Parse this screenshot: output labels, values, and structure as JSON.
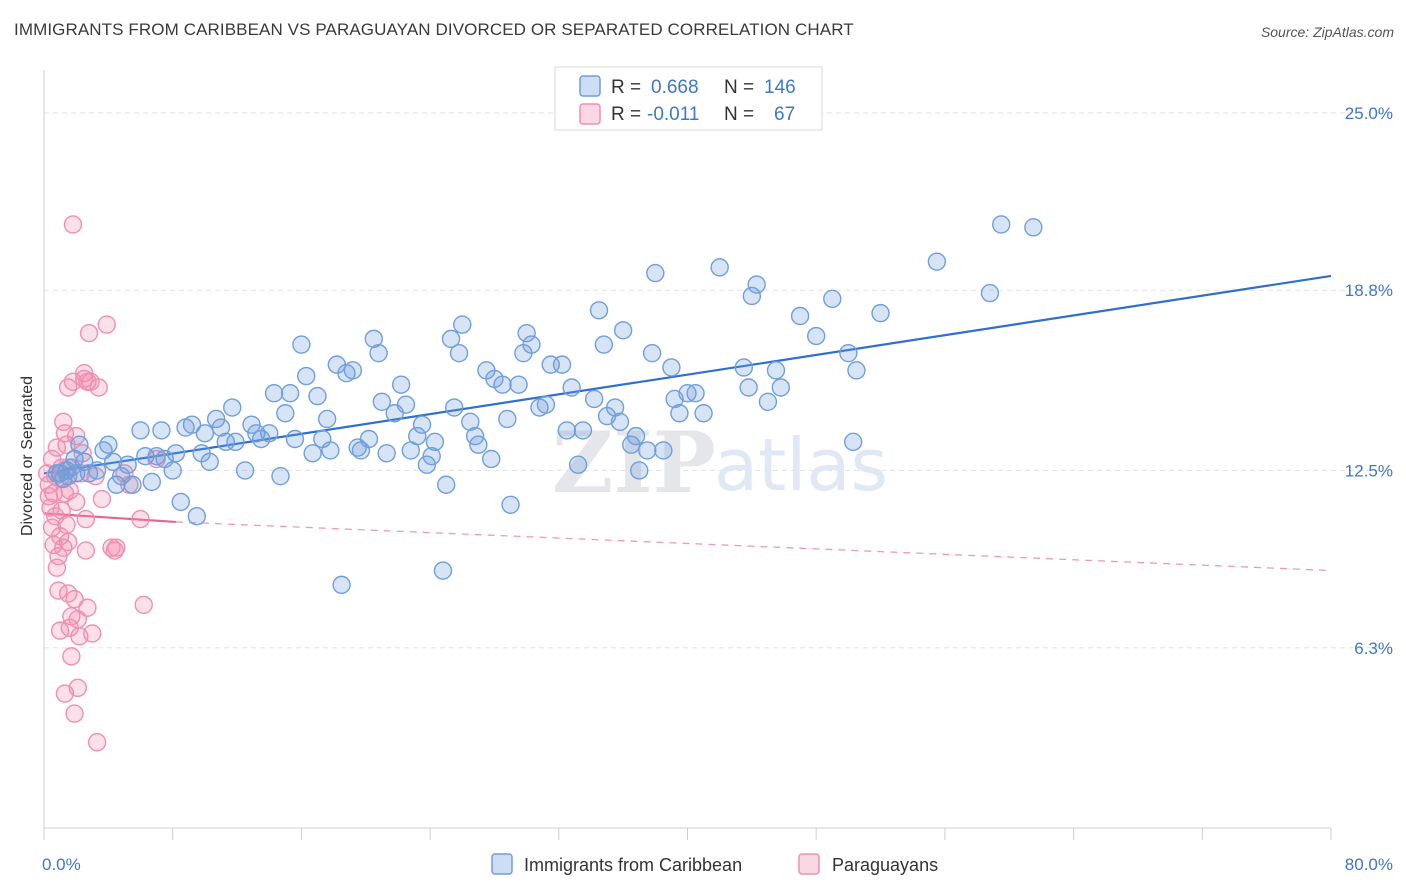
{
  "title": "IMMIGRANTS FROM CARIBBEAN VS PARAGUAYAN DIVORCED OR SEPARATED CORRELATION CHART",
  "source": "Source: ZipAtlas.com",
  "watermark": {
    "zip": "ZIP",
    "atlas": "atlas"
  },
  "legend": {
    "r_label": "R =",
    "n_label": "N =",
    "rows": [
      {
        "r": "0.668",
        "n": "146",
        "color": "#6f9fdc"
      },
      {
        "r": "-0.011",
        "n": "67",
        "color": "#f08fb0"
      }
    ]
  },
  "chart_data": {
    "type": "scatter",
    "title": "IMMIGRANTS FROM CARIBBEAN VS PARAGUAYAN DIVORCED OR SEPARATED CORRELATION CHART",
    "xlabel": "",
    "ylabel": "Divorced or Separated",
    "xlim": [
      0,
      80
    ],
    "ylim": [
      0,
      26.5
    ],
    "x_tick_labels": [
      "0.0%",
      "80.0%"
    ],
    "y_ticks": [
      6.3,
      12.5,
      18.8,
      25.0
    ],
    "y_tick_labels": [
      "6.3%",
      "12.5%",
      "18.8%",
      "25.0%"
    ],
    "grid": "horizontal dashed",
    "legend_position": "bottom",
    "series": [
      {
        "name": "Immigrants from Caribbean",
        "color": "#6f9fdc",
        "trend": {
          "x": [
            0,
            80
          ],
          "y": [
            12.4,
            19.3
          ],
          "style": "solid"
        },
        "points": [
          [
            0.8,
            12.4
          ],
          [
            1.0,
            12.4
          ],
          [
            1.2,
            12.2
          ],
          [
            1.4,
            12.5
          ],
          [
            1.5,
            12.3
          ],
          [
            1.7,
            12.6
          ],
          [
            1.9,
            12.9
          ],
          [
            2.0,
            12.4
          ],
          [
            2.2,
            13.4
          ],
          [
            2.5,
            12.8
          ],
          [
            2.8,
            12.4
          ],
          [
            3.3,
            12.5
          ],
          [
            3.7,
            13.2
          ],
          [
            4.0,
            13.4
          ],
          [
            4.3,
            12.8
          ],
          [
            4.5,
            12.0
          ],
          [
            4.8,
            12.3
          ],
          [
            5.2,
            12.7
          ],
          [
            5.5,
            12.0
          ],
          [
            6.0,
            13.9
          ],
          [
            6.3,
            13.0
          ],
          [
            6.7,
            12.1
          ],
          [
            7.0,
            13.0
          ],
          [
            7.3,
            13.9
          ],
          [
            7.5,
            12.9
          ],
          [
            8.0,
            12.5
          ],
          [
            8.2,
            13.1
          ],
          [
            8.5,
            11.4
          ],
          [
            8.8,
            14.0
          ],
          [
            9.2,
            14.1
          ],
          [
            9.5,
            10.9
          ],
          [
            9.8,
            13.1
          ],
          [
            10.0,
            13.8
          ],
          [
            10.3,
            12.8
          ],
          [
            10.7,
            14.3
          ],
          [
            11.0,
            14.0
          ],
          [
            11.3,
            13.5
          ],
          [
            11.7,
            14.7
          ],
          [
            11.9,
            13.5
          ],
          [
            12.5,
            12.5
          ],
          [
            12.9,
            14.1
          ],
          [
            13.2,
            13.8
          ],
          [
            13.5,
            13.6
          ],
          [
            14.0,
            13.8
          ],
          [
            14.3,
            15.2
          ],
          [
            14.7,
            12.3
          ],
          [
            15.0,
            14.5
          ],
          [
            15.3,
            15.2
          ],
          [
            15.6,
            13.6
          ],
          [
            16.0,
            16.9
          ],
          [
            16.3,
            15.8
          ],
          [
            16.7,
            13.1
          ],
          [
            17.0,
            15.1
          ],
          [
            17.3,
            13.6
          ],
          [
            17.6,
            14.3
          ],
          [
            17.8,
            13.2
          ],
          [
            18.2,
            16.2
          ],
          [
            18.5,
            8.5
          ],
          [
            18.8,
            15.9
          ],
          [
            19.2,
            16.0
          ],
          [
            19.5,
            13.3
          ],
          [
            19.7,
            13.2
          ],
          [
            20.2,
            13.6
          ],
          [
            20.5,
            17.1
          ],
          [
            20.8,
            16.6
          ],
          [
            21.0,
            14.9
          ],
          [
            21.3,
            13.1
          ],
          [
            21.8,
            14.5
          ],
          [
            22.2,
            15.5
          ],
          [
            22.5,
            14.8
          ],
          [
            22.8,
            13.2
          ],
          [
            23.2,
            13.7
          ],
          [
            23.5,
            14.1
          ],
          [
            23.8,
            12.7
          ],
          [
            24.1,
            13.0
          ],
          [
            24.3,
            13.5
          ],
          [
            24.8,
            9.0
          ],
          [
            25.0,
            12.0
          ],
          [
            25.3,
            17.1
          ],
          [
            25.5,
            14.7
          ],
          [
            25.8,
            16.6
          ],
          [
            26.0,
            17.6
          ],
          [
            26.5,
            14.2
          ],
          [
            26.8,
            13.7
          ],
          [
            27.0,
            13.4
          ],
          [
            27.5,
            16.0
          ],
          [
            27.8,
            12.9
          ],
          [
            28.0,
            15.7
          ],
          [
            28.5,
            15.5
          ],
          [
            28.8,
            14.3
          ],
          [
            29.0,
            11.3
          ],
          [
            29.5,
            15.5
          ],
          [
            29.8,
            16.6
          ],
          [
            30.0,
            17.3
          ],
          [
            30.3,
            16.9
          ],
          [
            30.8,
            14.7
          ],
          [
            31.2,
            14.8
          ],
          [
            31.5,
            16.2
          ],
          [
            32.2,
            16.2
          ],
          [
            32.5,
            13.9
          ],
          [
            32.8,
            15.4
          ],
          [
            33.2,
            12.7
          ],
          [
            33.5,
            13.9
          ],
          [
            34.2,
            15.0
          ],
          [
            34.5,
            18.1
          ],
          [
            34.8,
            16.9
          ],
          [
            35.0,
            14.4
          ],
          [
            35.5,
            14.7
          ],
          [
            35.8,
            14.2
          ],
          [
            36.0,
            17.4
          ],
          [
            36.5,
            13.4
          ],
          [
            36.8,
            13.7
          ],
          [
            37.0,
            12.5
          ],
          [
            37.5,
            13.2
          ],
          [
            37.8,
            16.6
          ],
          [
            38.0,
            19.4
          ],
          [
            38.5,
            13.2
          ],
          [
            39.0,
            16.1
          ],
          [
            39.2,
            15.0
          ],
          [
            39.5,
            14.5
          ],
          [
            40.0,
            15.2
          ],
          [
            40.5,
            15.2
          ],
          [
            41.0,
            14.5
          ],
          [
            42.0,
            19.6
          ],
          [
            43.5,
            16.1
          ],
          [
            43.8,
            15.4
          ],
          [
            44.0,
            18.6
          ],
          [
            44.3,
            19.0
          ],
          [
            45.0,
            14.9
          ],
          [
            45.5,
            16.0
          ],
          [
            45.8,
            15.4
          ],
          [
            47.0,
            17.9
          ],
          [
            48.0,
            17.2
          ],
          [
            49.0,
            18.5
          ],
          [
            50.0,
            16.6
          ],
          [
            50.3,
            13.5
          ],
          [
            50.5,
            16.0
          ],
          [
            52.0,
            18.0
          ],
          [
            55.5,
            19.8
          ],
          [
            58.8,
            18.7
          ],
          [
            59.5,
            21.1
          ],
          [
            61.5,
            21.0
          ]
        ]
      },
      {
        "name": "Paraguayans",
        "color": "#f08fb0",
        "trend": {
          "x": [
            0,
            8.2
          ],
          "y": [
            11.0,
            10.7
          ],
          "style": "solid",
          "extension": {
            "x": [
              8.2,
              80
            ],
            "y": [
              10.7,
              9.0
            ],
            "style": "dashed"
          }
        },
        "points": [
          [
            0.2,
            12.4
          ],
          [
            0.3,
            12.0
          ],
          [
            0.3,
            11.6
          ],
          [
            0.4,
            11.2
          ],
          [
            0.5,
            10.5
          ],
          [
            0.5,
            12.9
          ],
          [
            0.6,
            9.9
          ],
          [
            0.6,
            11.7
          ],
          [
            0.7,
            12.3
          ],
          [
            0.7,
            10.9
          ],
          [
            0.8,
            13.3
          ],
          [
            0.8,
            9.1
          ],
          [
            0.9,
            8.3
          ],
          [
            0.9,
            9.5
          ],
          [
            1.0,
            12.2
          ],
          [
            1.0,
            10.2
          ],
          [
            1.0,
            6.9
          ],
          [
            1.1,
            11.1
          ],
          [
            1.1,
            12.6
          ],
          [
            1.2,
            14.2
          ],
          [
            1.2,
            9.8
          ],
          [
            1.3,
            13.8
          ],
          [
            1.3,
            11.7
          ],
          [
            1.3,
            4.7
          ],
          [
            1.4,
            10.6
          ],
          [
            1.4,
            13.4
          ],
          [
            1.5,
            12.6
          ],
          [
            1.5,
            15.4
          ],
          [
            1.5,
            10.0
          ],
          [
            1.6,
            7.0
          ],
          [
            1.6,
            11.8
          ],
          [
            1.7,
            7.4
          ],
          [
            1.7,
            6.0
          ],
          [
            1.8,
            15.6
          ],
          [
            1.8,
            21.1
          ],
          [
            1.9,
            4.0
          ],
          [
            1.9,
            8.0
          ],
          [
            2.0,
            11.4
          ],
          [
            2.0,
            13.7
          ],
          [
            2.1,
            4.9
          ],
          [
            2.1,
            7.3
          ],
          [
            2.2,
            6.7
          ],
          [
            2.3,
            12.4
          ],
          [
            2.4,
            13.1
          ],
          [
            2.5,
            15.7
          ],
          [
            2.5,
            15.9
          ],
          [
            2.6,
            10.8
          ],
          [
            2.6,
            9.7
          ],
          [
            2.7,
            15.6
          ],
          [
            2.8,
            17.3
          ],
          [
            2.9,
            15.6
          ],
          [
            3.0,
            6.8
          ],
          [
            3.2,
            12.3
          ],
          [
            3.3,
            3.0
          ],
          [
            3.4,
            15.4
          ],
          [
            3.6,
            11.5
          ],
          [
            3.9,
            17.6
          ],
          [
            4.2,
            9.8
          ],
          [
            4.4,
            9.7
          ],
          [
            4.5,
            9.8
          ],
          [
            5.0,
            12.4
          ],
          [
            5.3,
            12.0
          ],
          [
            6.0,
            10.8
          ],
          [
            6.2,
            7.8
          ],
          [
            7.0,
            12.9
          ],
          [
            2.7,
            7.7
          ],
          [
            1.5,
            8.2
          ]
        ]
      }
    ]
  },
  "bottom_legend": [
    {
      "label": "Immigrants from Caribbean",
      "color": "#6f9fdc"
    },
    {
      "label": "Paraguayans",
      "color": "#f08fb0"
    }
  ]
}
